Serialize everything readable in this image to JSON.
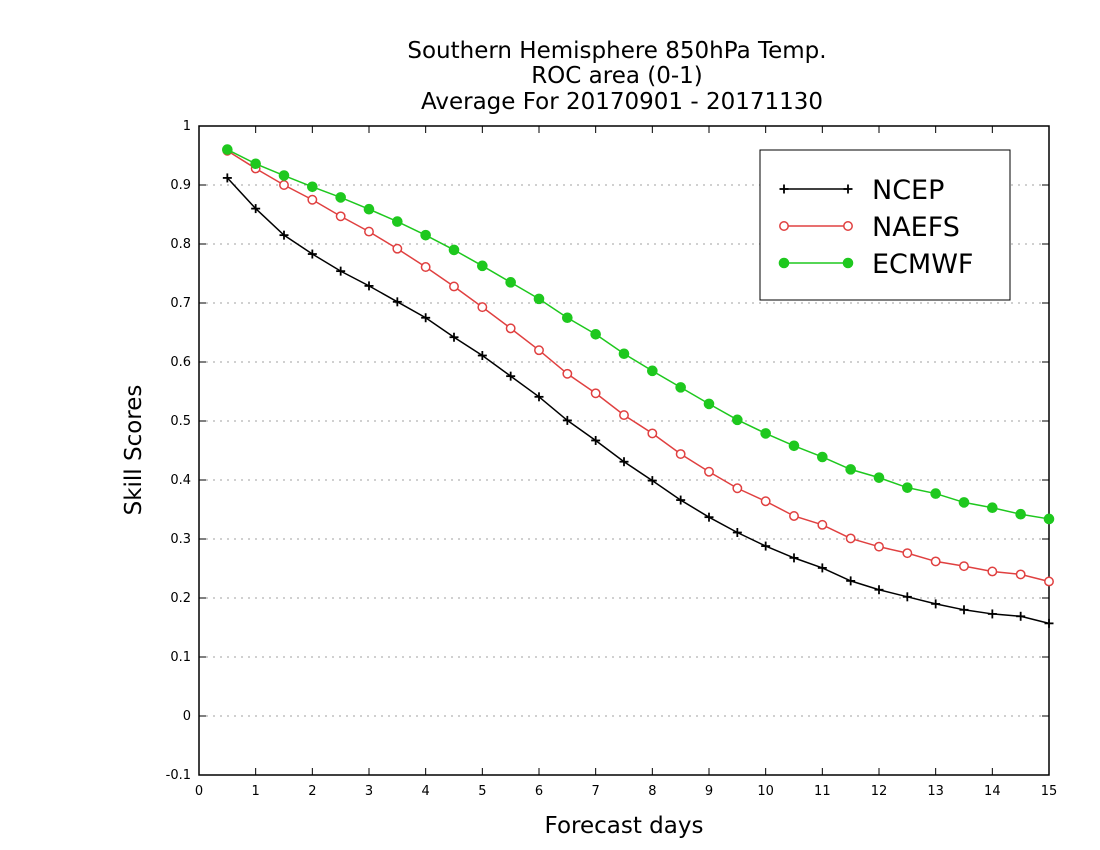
{
  "chart_data": {
    "type": "line",
    "title": [
      "Southern Hemisphere 850hPa Temp.",
      "ROC area (0-1)",
      "Average For 20170901 - 20171130"
    ],
    "xlabel": "Forecast days",
    "ylabel": "Skill Scores",
    "xlim": [
      0,
      15
    ],
    "ylim": [
      -0.1,
      1
    ],
    "xticks": [
      0,
      1,
      2,
      3,
      4,
      5,
      6,
      7,
      8,
      9,
      10,
      11,
      12,
      13,
      14,
      15
    ],
    "yticks": [
      -0.1,
      0,
      0.1,
      0.2,
      0.3,
      0.4,
      0.5,
      0.6,
      0.7,
      0.8,
      0.9,
      1
    ],
    "ytick_labels": [
      "-0.1",
      "0",
      "0.1",
      "0.2",
      "0.3",
      "0.4",
      "0.5",
      "0.6",
      "0.7",
      "0.8",
      "0.9",
      "1"
    ],
    "grid": "horizontal-dotted",
    "legend_position": "top-right",
    "x": [
      0.5,
      1,
      1.5,
      2,
      2.5,
      3,
      3.5,
      4,
      4.5,
      5,
      5.5,
      6,
      6.5,
      7,
      7.5,
      8,
      8.5,
      9,
      9.5,
      10,
      10.5,
      11,
      11.5,
      12,
      12.5,
      13,
      13.5,
      14,
      14.5,
      15
    ],
    "series": [
      {
        "name": "NCEP",
        "color": "#000000",
        "marker": "plus",
        "values": [
          0.912,
          0.86,
          0.815,
          0.783,
          0.754,
          0.729,
          0.702,
          0.675,
          0.642,
          0.611,
          0.576,
          0.541,
          0.501,
          0.467,
          0.431,
          0.399,
          0.366,
          0.337,
          0.311,
          0.288,
          0.268,
          0.251,
          0.229,
          0.214,
          0.202,
          0.19,
          0.18,
          0.173,
          0.169,
          0.157
        ]
      },
      {
        "name": "NAEFS",
        "color": "#e04040",
        "marker": "open-circle",
        "values": [
          0.958,
          0.928,
          0.9,
          0.875,
          0.847,
          0.821,
          0.792,
          0.761,
          0.728,
          0.693,
          0.657,
          0.62,
          0.58,
          0.547,
          0.51,
          0.479,
          0.444,
          0.414,
          0.386,
          0.364,
          0.339,
          0.324,
          0.301,
          0.287,
          0.276,
          0.262,
          0.254,
          0.245,
          0.24,
          0.228
        ]
      },
      {
        "name": "ECMWF",
        "color": "#1ec81e",
        "marker": "filled-circle",
        "values": [
          0.96,
          0.936,
          0.916,
          0.897,
          0.879,
          0.859,
          0.838,
          0.815,
          0.79,
          0.763,
          0.735,
          0.707,
          0.675,
          0.647,
          0.614,
          0.585,
          0.557,
          0.529,
          0.502,
          0.479,
          0.458,
          0.439,
          0.418,
          0.404,
          0.387,
          0.377,
          0.362,
          0.353,
          0.342,
          0.334
        ]
      }
    ]
  }
}
